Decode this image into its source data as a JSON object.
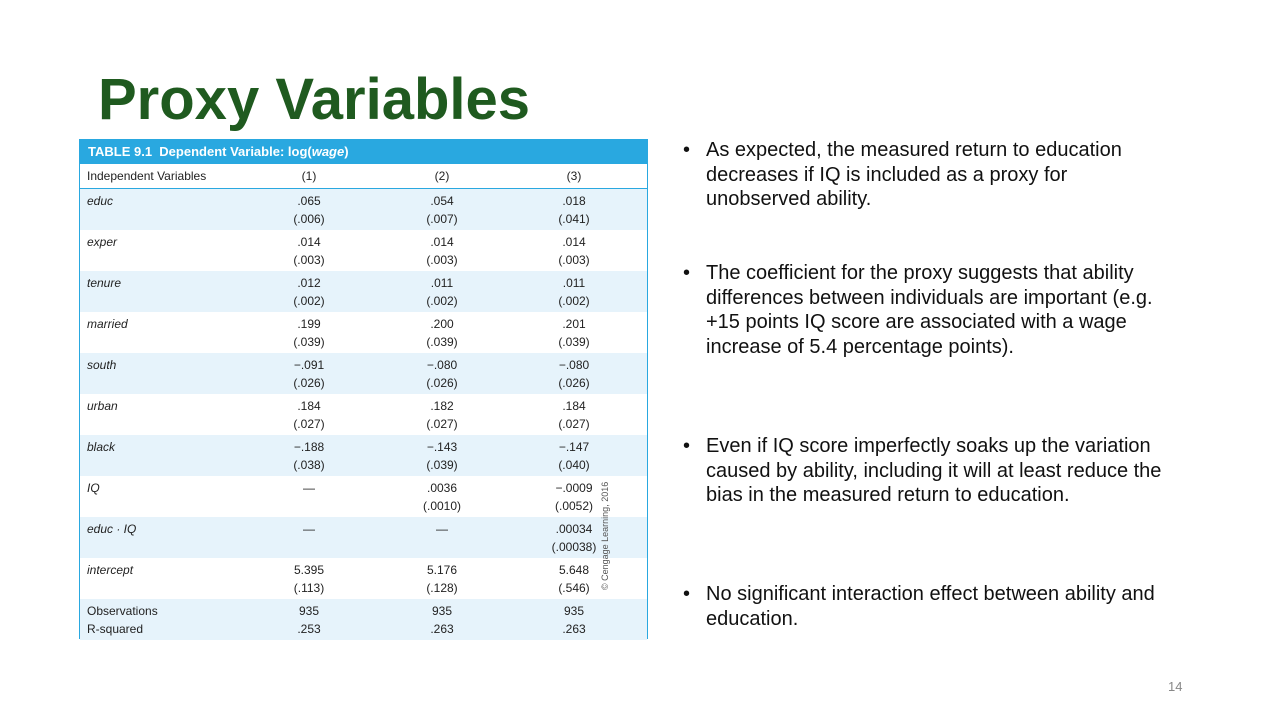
{
  "title": "Proxy Variables",
  "table": {
    "label": "TABLE 9.1",
    "caption_prefix": "Dependent Variable: log(",
    "caption_var": "wage",
    "caption_suffix": ")",
    "header": [
      "Independent Variables",
      "(1)",
      "(2)",
      "(3)"
    ],
    "rows": [
      {
        "name": "educ",
        "cells": [
          [
            ".065",
            "(.006)"
          ],
          [
            ".054",
            "(.007)"
          ],
          [
            ".018",
            "(.041)"
          ]
        ]
      },
      {
        "name": "exper",
        "cells": [
          [
            ".014",
            "(.003)"
          ],
          [
            ".014",
            "(.003)"
          ],
          [
            ".014",
            "(.003)"
          ]
        ]
      },
      {
        "name": "tenure",
        "cells": [
          [
            ".012",
            "(.002)"
          ],
          [
            ".011",
            "(.002)"
          ],
          [
            ".011",
            "(.002)"
          ]
        ]
      },
      {
        "name": "married",
        "cells": [
          [
            ".199",
            "(.039)"
          ],
          [
            ".200",
            "(.039)"
          ],
          [
            ".201",
            "(.039)"
          ]
        ]
      },
      {
        "name": "south",
        "cells": [
          [
            "−.091",
            "(.026)"
          ],
          [
            "−.080",
            "(.026)"
          ],
          [
            "−.080",
            "(.026)"
          ]
        ]
      },
      {
        "name": "urban",
        "cells": [
          [
            ".184",
            "(.027)"
          ],
          [
            ".182",
            "(.027)"
          ],
          [
            ".184",
            "(.027)"
          ]
        ]
      },
      {
        "name": "black",
        "cells": [
          [
            "−.188",
            "(.038)"
          ],
          [
            "−.143",
            "(.039)"
          ],
          [
            "−.147",
            "(.040)"
          ]
        ]
      },
      {
        "name": "IQ",
        "cells": [
          [
            "—"
          ],
          [
            ".0036",
            "(.0010)"
          ],
          [
            "−.0009",
            "(.0052)"
          ]
        ]
      },
      {
        "name": "educ · IQ",
        "cells": [
          [
            "—"
          ],
          [
            "—"
          ],
          [
            ".00034",
            "(.00038)"
          ]
        ]
      },
      {
        "name": "intercept",
        "cells": [
          [
            "5.395",
            "(.113)"
          ],
          [
            "5.176",
            "(.128)"
          ],
          [
            "5.648",
            "(.546)"
          ]
        ]
      }
    ],
    "footer": {
      "names": [
        "Observations",
        "R-squared"
      ],
      "cells": [
        [
          "935",
          ".253"
        ],
        [
          "935",
          ".263"
        ],
        [
          "935",
          ".263"
        ]
      ]
    },
    "copyright": "© Cengage Learning, 2016"
  },
  "bullets": [
    "As expected, the measured return to education decreases if IQ is included as a proxy for unobserved ability.",
    "The coefficient for the proxy suggests that ability differences between individuals are important (e.g. +15 points IQ score are associated with a wage increase of 5.4 percentage points).",
    "Even if IQ score imperfectly soaks up the variation caused by ability, including it will at least reduce the bias in the measured return to education.",
    "No significant interaction effect between ability and education."
  ],
  "page_number": "14"
}
